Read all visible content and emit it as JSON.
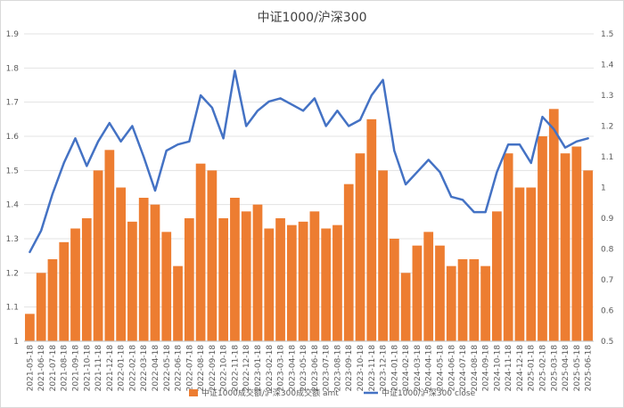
{
  "chart_data": {
    "type": "bar",
    "title": "中证1000/沪深300",
    "legend_position": "bottom",
    "grid": true,
    "y_left": {
      "min": 1.0,
      "max": 1.9,
      "ticks": [
        "1",
        "1.1",
        "1.2",
        "1.3",
        "1.4",
        "1.5",
        "1.6",
        "1.7",
        "1.8",
        "1.9"
      ]
    },
    "y_right": {
      "min": 0.5,
      "max": 1.5,
      "ticks": [
        "0.5",
        "0.6",
        "0.7",
        "0.8",
        "0.9",
        "1",
        "1.1",
        "1.2",
        "1.3",
        "1.4",
        "1.5"
      ]
    },
    "x_categories": [
      "2021-05-18",
      "2021-06-18",
      "2021-07-18",
      "2021-08-18",
      "2021-09-18",
      "2021-10-18",
      "2021-11-18",
      "2021-12-18",
      "2022-01-18",
      "2022-02-18",
      "2022-03-18",
      "2022-04-18",
      "2022-05-18",
      "2022-06-18",
      "2022-07-18",
      "2022-08-18",
      "2022-09-18",
      "2022-10-18",
      "2022-11-18",
      "2022-12-18",
      "2023-01-18",
      "2023-02-18",
      "2023-03-18",
      "2023-04-18",
      "2023-05-18",
      "2023-06-18",
      "2023-07-18",
      "2023-08-18",
      "2023-09-18",
      "2023-10-18",
      "2023-11-18",
      "2023-12-18",
      "2024-01-18",
      "2024-02-18",
      "2024-03-18",
      "2024-04-18",
      "2024-05-18",
      "2024-06-18",
      "2024-07-18",
      "2024-08-18",
      "2024-09-18",
      "2024-10-18",
      "2024-11-18",
      "2024-12-18",
      "2025-01-18",
      "2025-02-18",
      "2025-03-18",
      "2025-04-18",
      "2025-05-18",
      "2025-06-18"
    ],
    "series": [
      {
        "name": "中证1000成交额/沪深300成交额 amt",
        "type": "bar",
        "axis": "left",
        "color": "#ED7D31",
        "values": [
          1.08,
          1.2,
          1.24,
          1.29,
          1.33,
          1.36,
          1.5,
          1.56,
          1.45,
          1.35,
          1.42,
          1.4,
          1.32,
          1.22,
          1.36,
          1.52,
          1.5,
          1.36,
          1.42,
          1.38,
          1.4,
          1.33,
          1.36,
          1.34,
          1.35,
          1.38,
          1.33,
          1.34,
          1.46,
          1.55,
          1.65,
          1.5,
          1.3,
          1.2,
          1.28,
          1.32,
          1.28,
          1.22,
          1.24,
          1.24,
          1.22,
          1.38,
          1.55,
          1.45,
          1.45,
          1.6,
          1.68,
          1.55,
          1.57,
          1.5
        ]
      },
      {
        "name": "中证1000/沪深300 close",
        "type": "line",
        "axis": "right",
        "color": "#4472C4",
        "values": [
          0.79,
          0.86,
          0.98,
          1.08,
          1.16,
          1.07,
          1.15,
          1.21,
          1.15,
          1.2,
          1.1,
          0.99,
          1.12,
          1.14,
          1.15,
          1.3,
          1.26,
          1.16,
          1.38,
          1.2,
          1.25,
          1.28,
          1.29,
          1.27,
          1.25,
          1.29,
          1.2,
          1.25,
          1.2,
          1.22,
          1.3,
          1.35,
          1.12,
          1.01,
          1.05,
          1.09,
          1.05,
          0.97,
          0.96,
          0.92,
          0.92,
          1.05,
          1.14,
          1.14,
          1.08,
          1.23,
          1.19,
          1.13,
          1.15,
          1.16
        ]
      }
    ]
  }
}
